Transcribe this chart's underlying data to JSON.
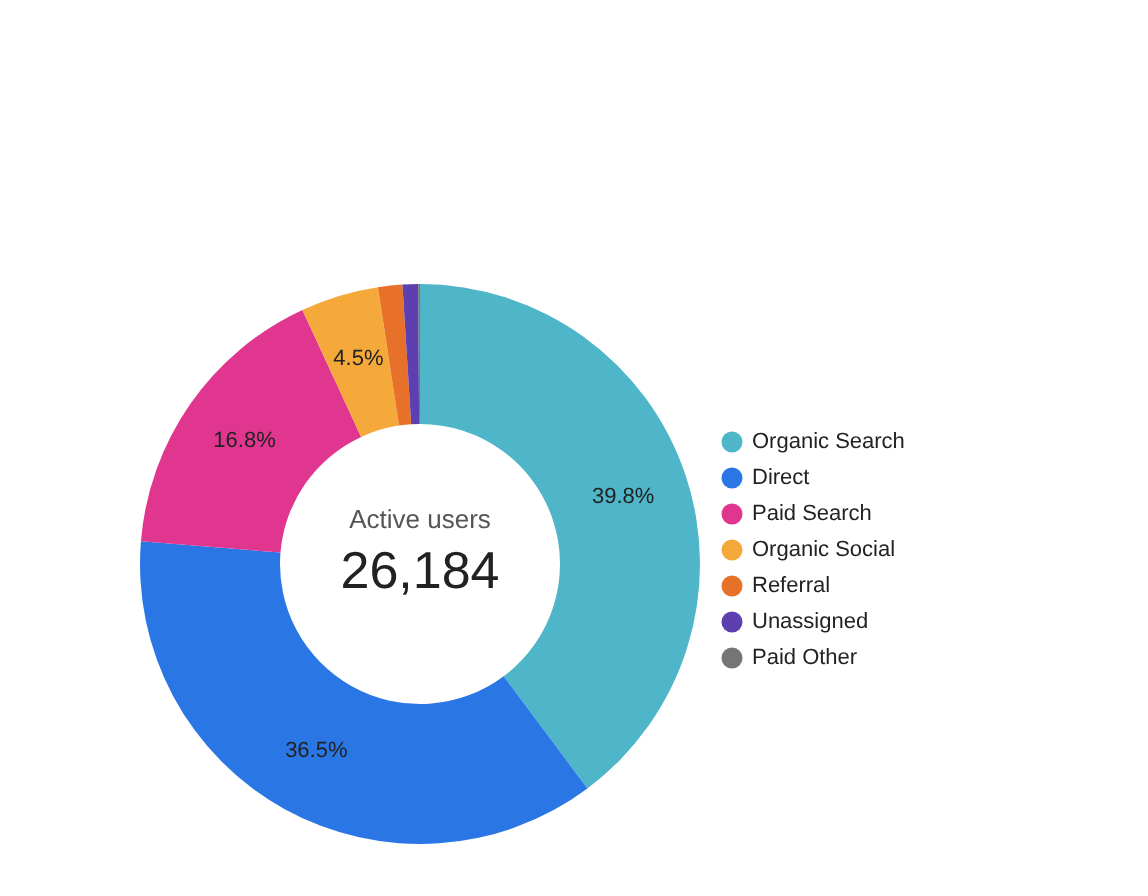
{
  "chart_data": {
    "type": "donut",
    "categories": [
      "Organic Search",
      "Direct",
      "Paid Search",
      "Organic Social",
      "Referral",
      "Unassigned",
      "Paid Other"
    ],
    "values": [
      39.8,
      36.5,
      16.8,
      4.5,
      1.4,
      0.9,
      0.1
    ],
    "value_labels": [
      "39.8%",
      "36.5%",
      "16.8%",
      "4.5%",
      null,
      null,
      null
    ],
    "colors": [
      "#4fb5c8",
      "#2b76e5",
      "#e0368f",
      "#f4a93a",
      "#e8712a",
      "#5e3fb0",
      "#757575"
    ],
    "annotations": [
      "Active users",
      "26,184"
    ],
    "legend": "right"
  }
}
